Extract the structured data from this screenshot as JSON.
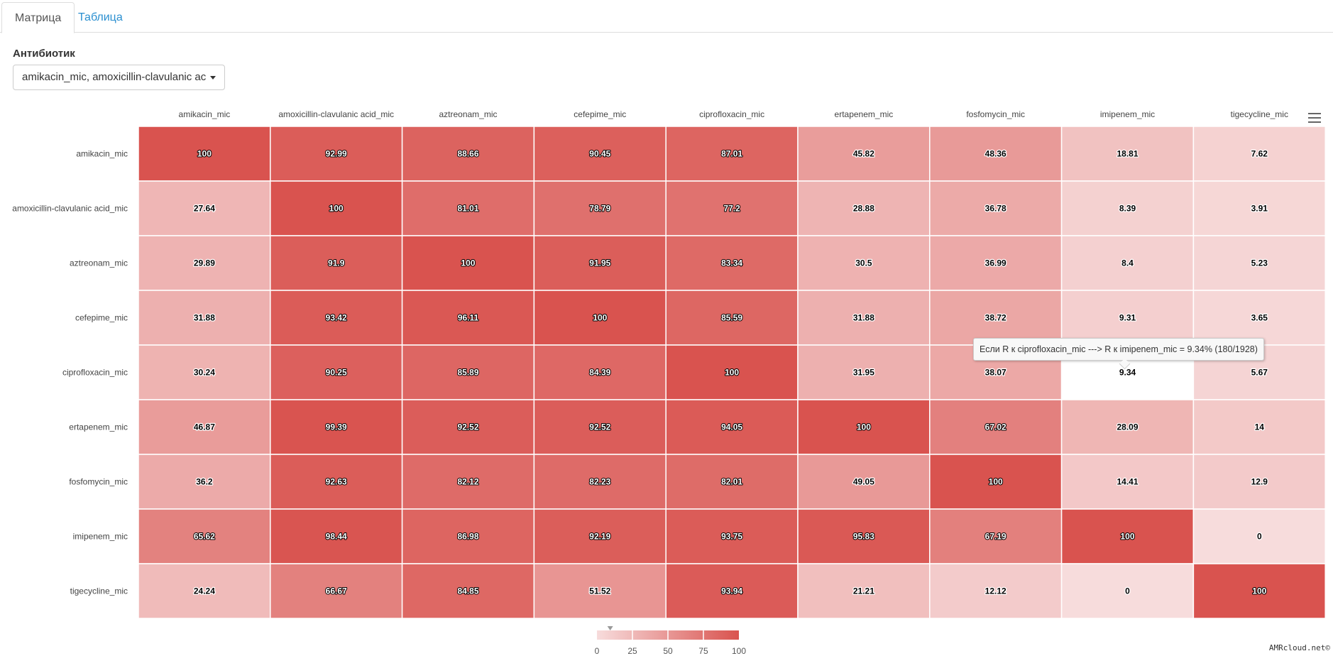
{
  "tabs": [
    {
      "label": "Матрица",
      "active": true
    },
    {
      "label": "Таблица",
      "active": false
    }
  ],
  "filter": {
    "label": "Антибиотик",
    "value": "amikacin_mic, amoxicillin-clavulanic acid_"
  },
  "chart_data": {
    "type": "heatmap",
    "x_categories": [
      "amikacin_mic",
      "amoxicillin-clavulanic acid_mic",
      "aztreonam_mic",
      "cefepime_mic",
      "ciprofloxacin_mic",
      "ertapenem_mic",
      "fosfomycin_mic",
      "imipenem_mic",
      "tigecycline_mic"
    ],
    "y_categories": [
      "amikacin_mic",
      "amoxicillin-clavulanic acid_mic",
      "aztreonam_mic",
      "cefepime_mic",
      "ciprofloxacin_mic",
      "ertapenem_mic",
      "fosfomycin_mic",
      "imipenem_mic",
      "tigecycline_mic"
    ],
    "values": [
      [
        100,
        92.99,
        88.66,
        90.45,
        87.01,
        45.82,
        48.36,
        18.81,
        7.62
      ],
      [
        27.64,
        100,
        81.01,
        78.79,
        77.2,
        28.88,
        36.78,
        8.39,
        3.91
      ],
      [
        29.89,
        91.9,
        100,
        91.95,
        83.34,
        30.5,
        36.99,
        8.4,
        5.23
      ],
      [
        31.88,
        93.42,
        96.11,
        100,
        85.59,
        31.88,
        38.72,
        9.31,
        3.65
      ],
      [
        30.24,
        90.25,
        85.89,
        84.39,
        100,
        31.95,
        38.07,
        9.34,
        5.67
      ],
      [
        46.87,
        99.39,
        92.52,
        92.52,
        94.05,
        100,
        67.02,
        28.09,
        14
      ],
      [
        36.2,
        92.63,
        82.12,
        82.23,
        82.01,
        49.05,
        100,
        14.41,
        12.9
      ],
      [
        65.62,
        98.44,
        86.98,
        92.19,
        93.75,
        95.83,
        67.19,
        100,
        0
      ],
      [
        24.24,
        66.67,
        84.85,
        51.52,
        93.94,
        21.21,
        12.12,
        0,
        100
      ]
    ],
    "color_scale": {
      "min": 0,
      "max": 100,
      "min_color": "#f7dcdc",
      "max_color": "#d9534f"
    },
    "legend": {
      "ticks": [
        0,
        25,
        50,
        75,
        100
      ],
      "placement": "bottom-center",
      "marker_value": 9.34
    },
    "highlight": {
      "row": 4,
      "col": 7
    }
  },
  "tooltip": {
    "text": "Если R к ciprofloxacin_mic ---> R к imipenem_mic = 9.34% (180/1928)"
  },
  "menu_icon": "hamburger-menu-icon",
  "credit": "AMRcloud.net©"
}
